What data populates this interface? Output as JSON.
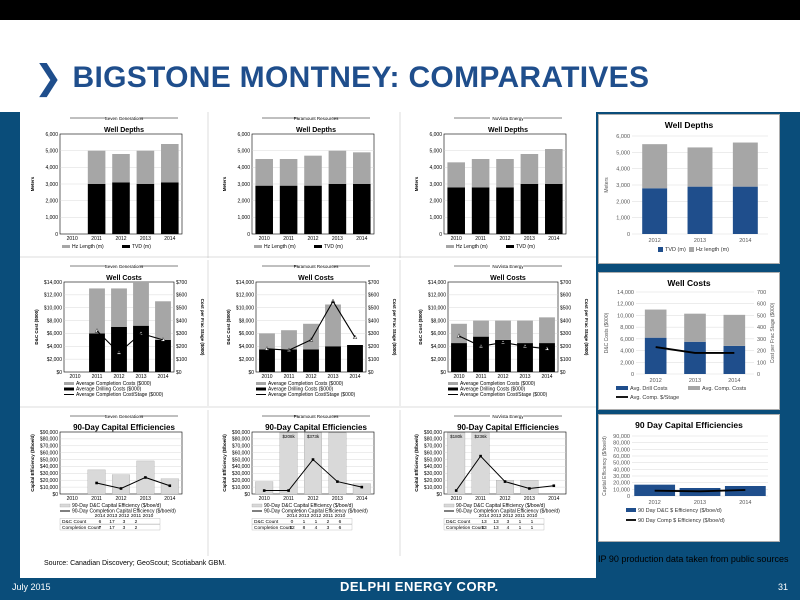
{
  "header": {
    "title": "BIGSTONE MONTNEY:  COMPARATIVES"
  },
  "footer": {
    "date": "July 2015",
    "page": "31",
    "logo": "DELPHI ENERGY CORP."
  },
  "source": "Source: Canadian Discovery; GeoScout; Scotiabank GBM.",
  "note": "IP 90 production data taken from public sources",
  "companies": [
    "Seven Generations",
    "Paramount Resources",
    "NuVista Energy"
  ],
  "colors": {
    "navy": "#1f4e8c",
    "gray": "#a6a6a6",
    "black": "#000000",
    "blue": "#0a4d7a"
  },
  "chart_data": [
    {
      "id": "sg-depths",
      "type": "bar",
      "title": "Well Depths",
      "company": "Seven Generations",
      "categories": [
        "2010",
        "2011",
        "2012",
        "2013",
        "2014"
      ],
      "series": [
        {
          "name": "Hz Length (m)",
          "values": [
            0,
            2000,
            1700,
            2000,
            2300
          ]
        },
        {
          "name": "TVD (m)",
          "values": [
            0,
            3000,
            3100,
            3000,
            3100
          ]
        }
      ],
      "ylabel": "Meters",
      "ylim": [
        0,
        6000
      ],
      "yticks": [
        "0",
        "1,000",
        "2,000",
        "3,000",
        "4,000",
        "5,000",
        "6,000"
      ]
    },
    {
      "id": "pr-depths",
      "type": "bar",
      "title": "Well Depths",
      "company": "Paramount Resources",
      "categories": [
        "2010",
        "2011",
        "2012",
        "2013",
        "2014"
      ],
      "series": [
        {
          "name": "Hz Length (m)",
          "values": [
            1600,
            1600,
            1800,
            2000,
            1900
          ]
        },
        {
          "name": "TVD (m)",
          "values": [
            2900,
            2900,
            2900,
            3000,
            3000
          ]
        }
      ],
      "ylabel": "Meters",
      "ylim": [
        0,
        6000
      ],
      "yticks": [
        "0",
        "1,000",
        "2,000",
        "3,000",
        "4,000",
        "5,000",
        "6,000"
      ]
    },
    {
      "id": "nv-depths",
      "type": "bar",
      "title": "Well Depths",
      "company": "NuVista Energy",
      "categories": [
        "2010",
        "2011",
        "2012",
        "2013",
        "2014"
      ],
      "series": [
        {
          "name": "Hz Length (m)",
          "values": [
            1500,
            1700,
            1700,
            1800,
            2100
          ]
        },
        {
          "name": "TVD (m)",
          "values": [
            2800,
            2800,
            2800,
            3000,
            3000
          ]
        }
      ],
      "ylabel": "Meters",
      "ylim": [
        0,
        6000
      ],
      "yticks": [
        "0",
        "1,000",
        "2,000",
        "3,000",
        "4,000",
        "5,000",
        "6,000"
      ]
    },
    {
      "id": "sg-costs",
      "type": "bar",
      "title": "Well Costs",
      "company": "Seven Generations",
      "categories": [
        "2010",
        "2011",
        "2012",
        "2013",
        "2014"
      ],
      "series": [
        {
          "name": "Average Completion Costs ($000)",
          "values": [
            0,
            7000,
            6000,
            7000,
            6000
          ]
        },
        {
          "name": "Average Drilling Costs ($000)",
          "values": [
            0,
            6000,
            7000,
            7200,
            5000
          ]
        },
        {
          "name": "Average Completion Cost/Stage ($000)",
          "values": [
            null,
            320,
            150,
            300,
            250
          ]
        }
      ],
      "ylabel": "D&C Cost ($000)",
      "y2label": "Cost per Frac Stage ($000)",
      "ylim": [
        0,
        14000
      ],
      "y2lim": [
        0,
        700
      ],
      "yticks": [
        "$0",
        "$2,000",
        "$4,000",
        "$6,000",
        "$8,000",
        "$10,000",
        "$12,000",
        "$14,000"
      ],
      "y2ticks": [
        "$0",
        "$100",
        "$200",
        "$300",
        "$400",
        "$500",
        "$600",
        "$700"
      ]
    },
    {
      "id": "pr-costs",
      "type": "bar",
      "title": "Well Costs",
      "company": "Paramount Resources",
      "categories": [
        "2010",
        "2011",
        "2012",
        "2013",
        "2014"
      ],
      "series": [
        {
          "name": "Average Completion Costs ($000)",
          "values": [
            2500,
            3000,
            4000,
            6500,
            0
          ]
        },
        {
          "name": "Average Drilling Costs ($000)",
          "values": [
            3500,
            3500,
            3500,
            4000,
            4200
          ]
        },
        {
          "name": "Average Completion Cost/Stage ($000)",
          "values": [
            180,
            170,
            250,
            550,
            270
          ]
        }
      ],
      "ylabel": "D&C Cost ($000)",
      "y2label": "Cost per Frac Stage ($000)",
      "ylim": [
        0,
        14000
      ],
      "y2lim": [
        0,
        700
      ],
      "yticks": [
        "$0",
        "$2,000",
        "$4,000",
        "$6,000",
        "$8,000",
        "$10,000",
        "$12,000",
        "$14,000"
      ],
      "y2ticks": [
        "$0",
        "$100",
        "$200",
        "$300",
        "$400",
        "$500",
        "$600",
        "$700"
      ]
    },
    {
      "id": "nv-costs",
      "type": "bar",
      "title": "Well Costs",
      "company": "NuVista Energy",
      "categories": [
        "2010",
        "2011",
        "2012",
        "2013",
        "2014"
      ],
      "series": [
        {
          "name": "Average Completion Costs ($000)",
          "values": [
            3000,
            2500,
            3000,
            3500,
            4000
          ]
        },
        {
          "name": "Average Drilling Costs ($000)",
          "values": [
            4500,
            5500,
            5000,
            4500,
            4500
          ]
        },
        {
          "name": "Average Completion Cost/Stage ($000)",
          "values": [
            280,
            200,
            230,
            200,
            180
          ]
        }
      ],
      "ylabel": "D&C Cost ($000)",
      "y2label": "Cost per Frac Stage ($000)",
      "ylim": [
        0,
        14000
      ],
      "y2lim": [
        0,
        700
      ],
      "yticks": [
        "$0",
        "$2,000",
        "$4,000",
        "$6,000",
        "$8,000",
        "$10,000",
        "$12,000",
        "$14,000"
      ],
      "y2ticks": [
        "$0",
        "$100",
        "$200",
        "$300",
        "$400",
        "$500",
        "$600",
        "$700"
      ]
    },
    {
      "id": "sg-eff",
      "type": "bar",
      "title": "90-Day Capital Efficiencies",
      "company": "Seven Generations",
      "categories": [
        "2010",
        "2011",
        "2012",
        "2013",
        "2014"
      ],
      "series": [
        {
          "name": "90-Day D&C Capital Efficiency ($/boe/d)",
          "values": [
            0,
            35000,
            28000,
            48000,
            22000
          ]
        },
        {
          "name": "90-Day Completion Capital Efficiency ($/boe/d)",
          "values": [
            null,
            16000,
            8000,
            24000,
            12000
          ]
        }
      ],
      "ylabel": "Capital Efficiency ($/boe/d)",
      "ylim": [
        0,
        90000
      ],
      "yticks": [
        "$0",
        "$10,000",
        "$20,000",
        "$30,000",
        "$40,000",
        "$50,000",
        "$60,000",
        "$70,000",
        "$80,000",
        "$90,000"
      ],
      "table": {
        "header": [
          "2014",
          "2013",
          "2012",
          "2011",
          "2010"
        ],
        "rows": [
          {
            "label": "D&C Count",
            "values": [
              "6",
              "17",
              "3",
              "2",
              ""
            ]
          },
          {
            "label": "Completion Count",
            "values": [
              "7",
              "17",
              "3",
              "2",
              ""
            ]
          }
        ]
      }
    },
    {
      "id": "pr-eff",
      "type": "bar",
      "title": "90-Day Capital Efficiencies",
      "company": "Paramount Resources",
      "categories": [
        "2010",
        "2011",
        "2012",
        "2013",
        "2014"
      ],
      "series": [
        {
          "name": "90-Day D&C Capital Efficiency ($/boe/d)",
          "values": [
            18000,
            89000,
            89000,
            89000,
            15000
          ]
        },
        {
          "name": "90-Day Completion Capital Efficiency ($/boe/d)",
          "values": [
            5000,
            5000,
            50000,
            18000,
            10000
          ]
        }
      ],
      "ylabel": "Capital Efficiency ($/boe/d)",
      "ylim": [
        0,
        90000
      ],
      "yticks": [
        "$0",
        "$10,000",
        "$20,000",
        "$30,000",
        "$40,000",
        "$50,000",
        "$60,000",
        "$70,000",
        "$80,000",
        "$90,000"
      ],
      "labels": [
        "",
        "$208k",
        "$373k",
        "",
        ""
      ],
      "table": {
        "header": [
          "2014",
          "2013",
          "2012",
          "2011",
          "2010"
        ],
        "rows": [
          {
            "label": "D&C Count",
            "values": [
              "0",
              "1",
              "1",
              "2",
              "6"
            ]
          },
          {
            "label": "Completion Count",
            "values": [
              "12",
              "8",
              "4",
              "3",
              "6"
            ]
          }
        ]
      }
    },
    {
      "id": "nv-eff",
      "type": "bar",
      "title": "90-Day Capital Efficiencies",
      "company": "NuVista Energy",
      "categories": [
        "2010",
        "2011",
        "2012",
        "2013",
        "2014"
      ],
      "series": [
        {
          "name": "90-Day D&C Capital Efficiency ($/boe/d)",
          "values": [
            89000,
            89000,
            20000,
            20000,
            0
          ]
        },
        {
          "name": "90-Day Completion Capital Efficiency ($/boe/d)",
          "values": [
            5000,
            55000,
            18000,
            8000,
            12000
          ]
        }
      ],
      "ylabel": "Capital Efficiency ($/boe/d)",
      "ylim": [
        0,
        90000
      ],
      "yticks": [
        "$0",
        "$10,000",
        "$20,000",
        "$30,000",
        "$40,000",
        "$50,000",
        "$60,000",
        "$70,000",
        "$80,000",
        "$90,000"
      ],
      "labels": [
        "$180k",
        "$236k",
        "",
        "",
        ""
      ],
      "table": {
        "header": [
          "2014",
          "2013",
          "2012",
          "2011",
          "2010"
        ],
        "rows": [
          {
            "label": "D&C Count",
            "values": [
              "13",
              "13",
              "3",
              "1",
              "1"
            ]
          },
          {
            "label": "Completion Count",
            "values": [
              "13",
              "13",
              "4",
              "1",
              "1"
            ]
          }
        ]
      }
    },
    {
      "id": "delphi-depths",
      "type": "bar",
      "title": "Well Depths",
      "categories": [
        "2012",
        "2013",
        "2014"
      ],
      "series": [
        {
          "name": "TVD (m)",
          "values": [
            2800,
            2900,
            2900
          ]
        },
        {
          "name": "Hz length (m)",
          "values": [
            2700,
            2400,
            2700
          ]
        }
      ],
      "ylabel": "Meters",
      "ylim": [
        0,
        6000
      ],
      "yticks": [
        "0",
        "1,000",
        "2,000",
        "3,000",
        "4,000",
        "5,000",
        "6,000"
      ]
    },
    {
      "id": "delphi-costs",
      "type": "bar",
      "title": "Well Costs",
      "categories": [
        "2012",
        "2013",
        "2014"
      ],
      "series": [
        {
          "name": "Avg. Drill Costs",
          "values": [
            6200,
            5500,
            4800
          ]
        },
        {
          "name": "Avg. Comp. Costs",
          "values": [
            4800,
            4800,
            5300
          ]
        },
        {
          "name": "Avg. Comp. $/Stage",
          "values": [
            230,
            180,
            180
          ]
        }
      ],
      "ylabel": "D&C Costs ($000)",
      "y2label": "Cost per Frac Stage ($000)",
      "ylim": [
        0,
        14000
      ],
      "y2lim": [
        0,
        700
      ],
      "yticks": [
        "0",
        "2,000",
        "4,000",
        "6,000",
        "8,000",
        "10,000",
        "12,000",
        "14,000"
      ],
      "y2ticks": [
        "0",
        "100",
        "200",
        "300",
        "400",
        "500",
        "600",
        "700"
      ]
    },
    {
      "id": "delphi-eff",
      "type": "bar",
      "title": "90 Day Capital Efficiencies",
      "categories": [
        "2012",
        "2013",
        "2014"
      ],
      "series": [
        {
          "name": "90 Day D&C $ Efficiency ($/boe/d)",
          "values": [
            17000,
            12000,
            15000
          ]
        },
        {
          "name": "90 Day Comp $ Efficiency ($/boe/d)",
          "values": [
            8000,
            7000,
            9000
          ]
        }
      ],
      "ylabel": "Capital Efficiency ($/boe/d)",
      "ylim": [
        0,
        90000
      ],
      "yticks": [
        "0",
        "10,000",
        "20,000",
        "30,000",
        "40,000",
        "50,000",
        "60,000",
        "70,000",
        "80,000",
        "90,000"
      ]
    }
  ]
}
